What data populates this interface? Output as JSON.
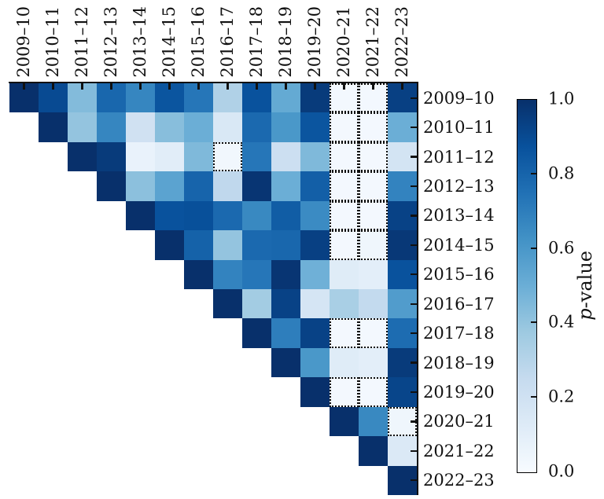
{
  "chart_data": {
    "type": "heatmap",
    "title": "",
    "categories": [
      "2009–10",
      "2010–11",
      "2011–12",
      "2012–13",
      "2013–14",
      "2014–15",
      "2015–16",
      "2016–17",
      "2017–18",
      "2018–19",
      "2019–20",
      "2020–21",
      "2021–22",
      "2022–23"
    ],
    "matrix": [
      [
        1.0,
        0.9,
        0.44,
        0.79,
        0.67,
        0.86,
        0.73,
        0.32,
        0.87,
        0.52,
        0.96,
        0.02,
        0.02,
        0.94
      ],
      [
        null,
        1.0,
        0.4,
        0.67,
        0.2,
        0.43,
        0.5,
        0.15,
        0.78,
        0.6,
        0.86,
        0.02,
        0.02,
        0.5
      ],
      [
        null,
        null,
        1.0,
        0.96,
        0.07,
        0.11,
        0.45,
        0.03,
        0.73,
        0.22,
        0.45,
        0.02,
        0.02,
        0.18
      ],
      [
        null,
        null,
        null,
        1.0,
        0.42,
        0.55,
        0.8,
        0.27,
        0.98,
        0.5,
        0.82,
        0.02,
        0.02,
        0.68
      ],
      [
        null,
        null,
        null,
        null,
        1.0,
        0.87,
        0.88,
        0.78,
        0.66,
        0.83,
        0.65,
        0.02,
        0.02,
        0.93
      ],
      [
        null,
        null,
        null,
        null,
        null,
        1.0,
        0.81,
        0.4,
        0.78,
        0.79,
        0.94,
        0.02,
        0.04,
        0.97
      ],
      [
        null,
        null,
        null,
        null,
        null,
        null,
        1.0,
        0.68,
        0.73,
        0.98,
        0.49,
        0.12,
        0.1,
        0.87
      ],
      [
        null,
        null,
        null,
        null,
        null,
        null,
        null,
        1.0,
        0.36,
        0.93,
        0.17,
        0.34,
        0.26,
        0.58
      ],
      [
        null,
        null,
        null,
        null,
        null,
        null,
        null,
        null,
        1.0,
        0.7,
        0.93,
        0.02,
        0.02,
        0.77
      ],
      [
        null,
        null,
        null,
        null,
        null,
        null,
        null,
        null,
        null,
        1.0,
        0.6,
        0.12,
        0.1,
        0.96
      ],
      [
        null,
        null,
        null,
        null,
        null,
        null,
        null,
        null,
        null,
        null,
        1.0,
        0.02,
        0.02,
        0.92
      ],
      [
        null,
        null,
        null,
        null,
        null,
        null,
        null,
        null,
        null,
        null,
        null,
        1.0,
        0.66,
        0.04
      ],
      [
        null,
        null,
        null,
        null,
        null,
        null,
        null,
        null,
        null,
        null,
        null,
        null,
        1.0,
        0.14
      ],
      [
        null,
        null,
        null,
        null,
        null,
        null,
        null,
        null,
        null,
        null,
        null,
        null,
        null,
        1.0
      ]
    ],
    "dotted_cells": [
      [
        0,
        11
      ],
      [
        0,
        12
      ],
      [
        1,
        11
      ],
      [
        1,
        12
      ],
      [
        2,
        7
      ],
      [
        2,
        11
      ],
      [
        2,
        12
      ],
      [
        3,
        11
      ],
      [
        3,
        12
      ],
      [
        4,
        11
      ],
      [
        4,
        12
      ],
      [
        5,
        11
      ],
      [
        5,
        12
      ],
      [
        8,
        11
      ],
      [
        8,
        12
      ],
      [
        10,
        11
      ],
      [
        10,
        12
      ],
      [
        11,
        13
      ]
    ],
    "colormap": {
      "name": "Blues",
      "stops": [
        "#f7fbff",
        "#deebf7",
        "#c6dbef",
        "#9ecae1",
        "#6baed6",
        "#4292c6",
        "#2171b5",
        "#08519c",
        "#08306b"
      ]
    },
    "colorbar": {
      "label_italic": "p",
      "label_rest": "-value",
      "tick_labels": [
        "1.0",
        "0.8",
        "0.6",
        "0.4",
        "0.2",
        "0.0"
      ],
      "range": [
        0.0,
        1.0
      ]
    }
  }
}
